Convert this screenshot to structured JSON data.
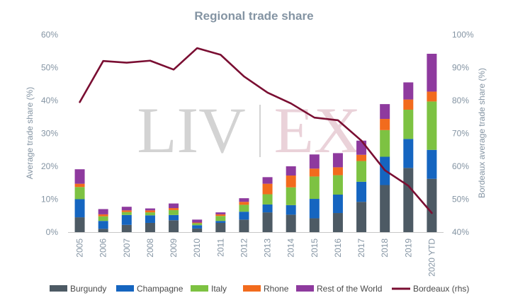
{
  "chart_data": {
    "type": "bar",
    "stacked": true,
    "title": "Regional trade share",
    "ylabel": "Average trade share (%)",
    "y2label": "Bordeaux average trade share (%)",
    "ylim": [
      0,
      60
    ],
    "y2lim": [
      40,
      100
    ],
    "yticks": [
      "0%",
      "10%",
      "20%",
      "30%",
      "40%",
      "50%",
      "60%"
    ],
    "y2ticks": [
      "40%",
      "50%",
      "60%",
      "70%",
      "80%",
      "90%",
      "100%"
    ],
    "categories": [
      "2005",
      "2006",
      "2007",
      "2008",
      "2009",
      "2010",
      "2011",
      "2012",
      "2013",
      "2014",
      "2015",
      "2016",
      "2017",
      "2018",
      "2019",
      "2020 YTD"
    ],
    "series": [
      {
        "name": "Burgundy",
        "color": "#4d5a64",
        "values": [
          4.5,
          1.0,
          2.2,
          2.8,
          3.6,
          1.1,
          2.8,
          3.8,
          6.0,
          5.3,
          4.2,
          5.8,
          9.2,
          14.3,
          19.5,
          16.2
        ]
      },
      {
        "name": "Champagne",
        "color": "#1565c0",
        "values": [
          5.5,
          2.4,
          3.0,
          2.3,
          1.6,
          1.0,
          0.6,
          2.4,
          2.4,
          2.9,
          5.9,
          5.6,
          6.1,
          8.6,
          8.8,
          8.8
        ]
      },
      {
        "name": "Italy",
        "color": "#7dc242",
        "values": [
          3.7,
          1.4,
          0.9,
          0.9,
          1.5,
          0.6,
          1.5,
          2.1,
          3.1,
          5.4,
          6.8,
          5.9,
          6.3,
          8.1,
          8.9,
          14.7
        ]
      },
      {
        "name": "Rhone",
        "color": "#f26b1d",
        "values": [
          1.0,
          0.6,
          0.5,
          0.6,
          0.6,
          0.2,
          0.5,
          0.9,
          3.2,
          3.6,
          2.4,
          2.4,
          1.9,
          3.4,
          3.1,
          3.0
        ]
      },
      {
        "name": "Rest of the World",
        "color": "#8e3a9e",
        "values": [
          4.4,
          1.6,
          1.1,
          0.6,
          1.4,
          0.9,
          0.6,
          1.1,
          2.0,
          2.8,
          4.3,
          4.3,
          4.3,
          4.5,
          5.2,
          11.5
        ]
      }
    ],
    "line": {
      "name": "Bordeaux (rhs)",
      "color": "#7a0e32",
      "axis": "right",
      "values": [
        79.5,
        92.0,
        91.5,
        92.1,
        89.4,
        95.9,
        93.9,
        87.3,
        82.4,
        79.1,
        74.8,
        74.0,
        67.8,
        58.8,
        54.1,
        45.8
      ]
    },
    "grid": false,
    "legend": "bottom"
  },
  "watermark": {
    "left": "LIV",
    "right": "EX",
    "left_color": "#d3d3d3",
    "right_color": "#ead2d9"
  }
}
